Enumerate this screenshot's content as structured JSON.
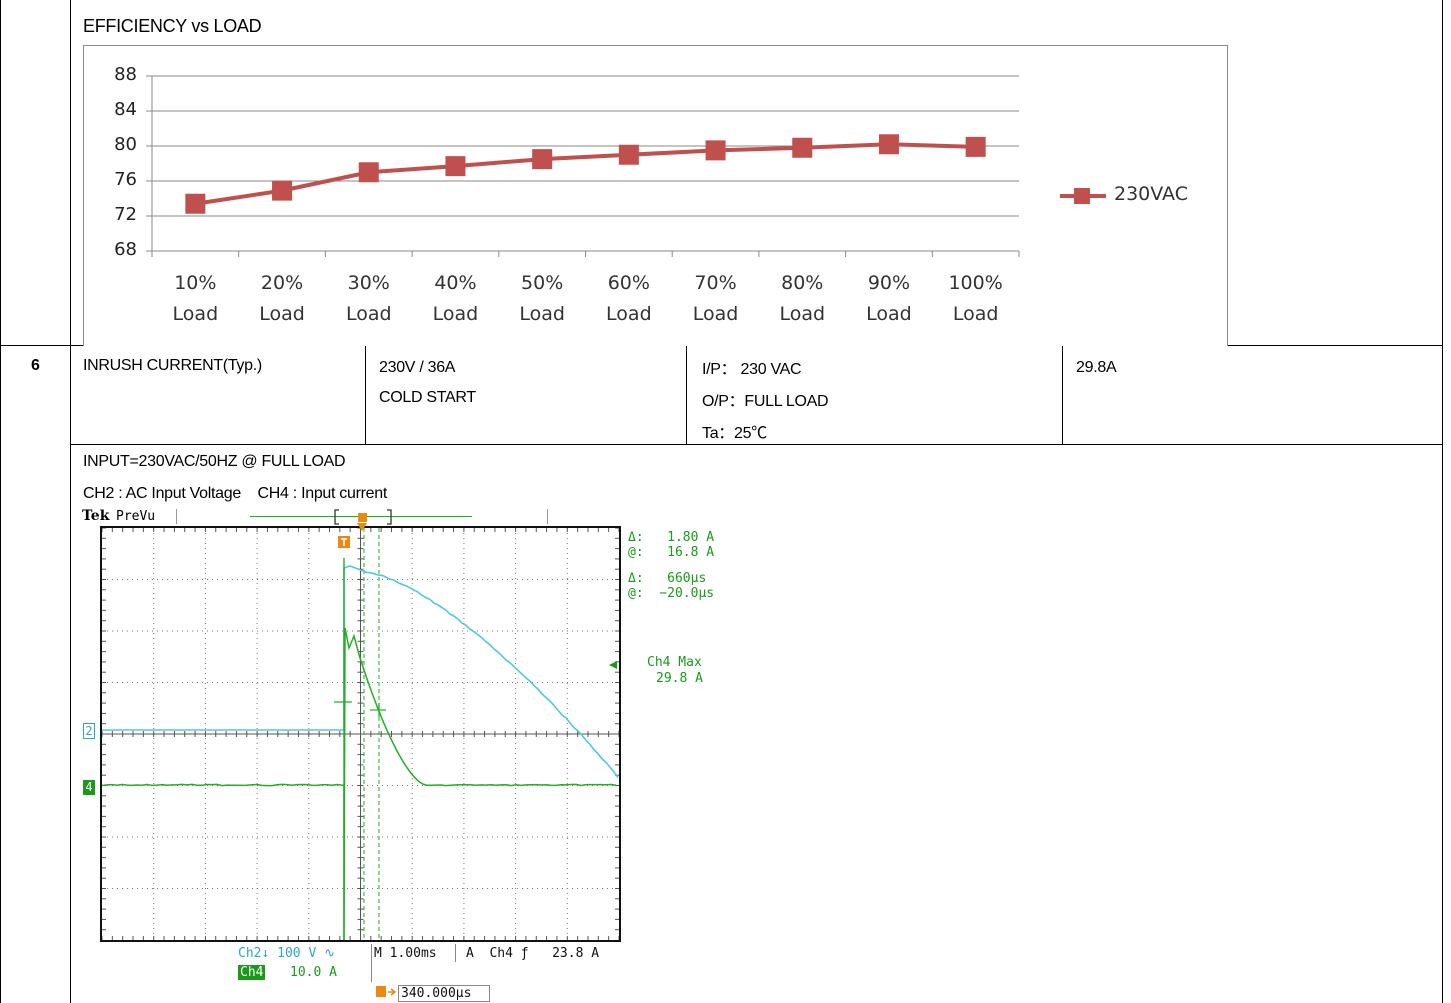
{
  "section_efficiency": {
    "title": "EFFICIENCY vs LOAD"
  },
  "chart_data": {
    "type": "line",
    "title": "",
    "categories": [
      "10% Load",
      "20% Load",
      "30% Load",
      "40% Load",
      "50% Load",
      "60% Load",
      "70% Load",
      "80% Load",
      "90% Load",
      "100% Load"
    ],
    "category_lines": [
      [
        "10%",
        "Load"
      ],
      [
        "20%",
        "Load"
      ],
      [
        "30%",
        "Load"
      ],
      [
        "40%",
        "Load"
      ],
      [
        "50%",
        "Load"
      ],
      [
        "60%",
        "Load"
      ],
      [
        "70%",
        "Load"
      ],
      [
        "80%",
        "Load"
      ],
      [
        "90%",
        "Load"
      ],
      [
        "100%",
        "Load"
      ]
    ],
    "yticks": [
      "88",
      "84",
      "80",
      "76",
      "72",
      "68"
    ],
    "ylim": [
      68,
      88
    ],
    "series": [
      {
        "name": "230VAC",
        "color": "#c0504d",
        "values": [
          73.4,
          74.9,
          77.0,
          77.7,
          78.5,
          79.0,
          79.5,
          79.8,
          80.2,
          79.9
        ]
      }
    ],
    "legend": "right",
    "grid": true
  },
  "row6": {
    "number": "6",
    "item": "INRUSH CURRENT(Typ.)",
    "spec_line1": "230V / 36A",
    "spec_line2": "COLD START",
    "cond_line1": "I/P： 230 VAC",
    "cond_line2": "O/P：FULL LOAD",
    "cond_line3": "Ta：25℃",
    "result": "29.8A"
  },
  "scope_section": {
    "caption1": "INPUT=230VAC/50HZ @ FULL LOAD",
    "caption2": "CH2 : AC Input Voltage    CH4 : Input current"
  },
  "scope": {
    "brand": "Tek",
    "mode": "PreVu",
    "meas_delta_a": "Δ:   1.80 A",
    "meas_at_a": "@:   16.8 A",
    "meas_delta_t": "Δ:   660μs",
    "meas_at_t": "@:  −20.0μs",
    "max_label": "Ch4 Max",
    "max_value": "29.8 A",
    "ch2_marker": "2",
    "ch4_marker": "4",
    "ch2_setting": "Ch2↓ 100 V ∿",
    "timebase": "M 1.00ms",
    "trigger": "A  Ch4 ƒ   23.8 A",
    "ch4_label": "Ch4",
    "ch4_setting": "10.0 A",
    "trigger_pos": "340.000μs",
    "colors": {
      "ch2": "#4fc8e0",
      "ch4": "#22b022",
      "cursor": "#3cc03c",
      "trigger": "#e88a10"
    }
  }
}
